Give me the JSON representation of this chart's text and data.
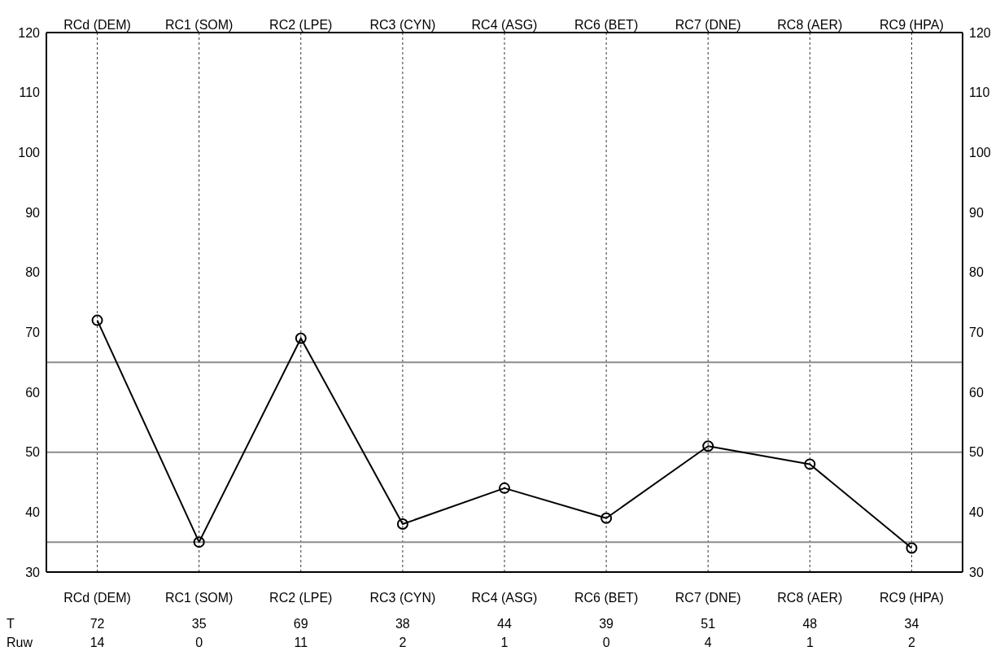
{
  "chart_data": {
    "type": "line",
    "categories": [
      "RCd (DEM)",
      "RC1 (SOM)",
      "RC2 (LPE)",
      "RC3 (CYN)",
      "RC4 (ASG)",
      "RC6 (BET)",
      "RC7 (DNE)",
      "RC8 (AER)",
      "RC9 (HPA)"
    ],
    "series": [
      {
        "color": "#000000",
        "values": [
          72,
          35,
          69,
          38,
          44,
          39,
          51,
          48,
          34
        ]
      }
    ],
    "ylim": [
      30,
      120
    ],
    "yticks": [
      30,
      40,
      50,
      60,
      70,
      80,
      90,
      100,
      110,
      120
    ],
    "y2lim": [
      30,
      120
    ],
    "y2ticks": [
      30,
      40,
      50,
      60,
      70,
      80,
      90,
      100,
      110,
      120
    ],
    "ref_lines": [
      {
        "axis": "y",
        "value": 35,
        "color": "#8c8c8c"
      },
      {
        "axis": "y",
        "value": 50,
        "color": "#8c8c8c"
      },
      {
        "axis": "y",
        "value": 65,
        "color": "#8c8c8c"
      }
    ],
    "grid": true,
    "marker": "circle",
    "line_style": "solid",
    "data_labels": true,
    "annotations": [
      "T",
      "Ruw",
      "14",
      "0",
      "11",
      "2",
      "1",
      "0",
      "4",
      "1",
      "2"
    ]
  }
}
